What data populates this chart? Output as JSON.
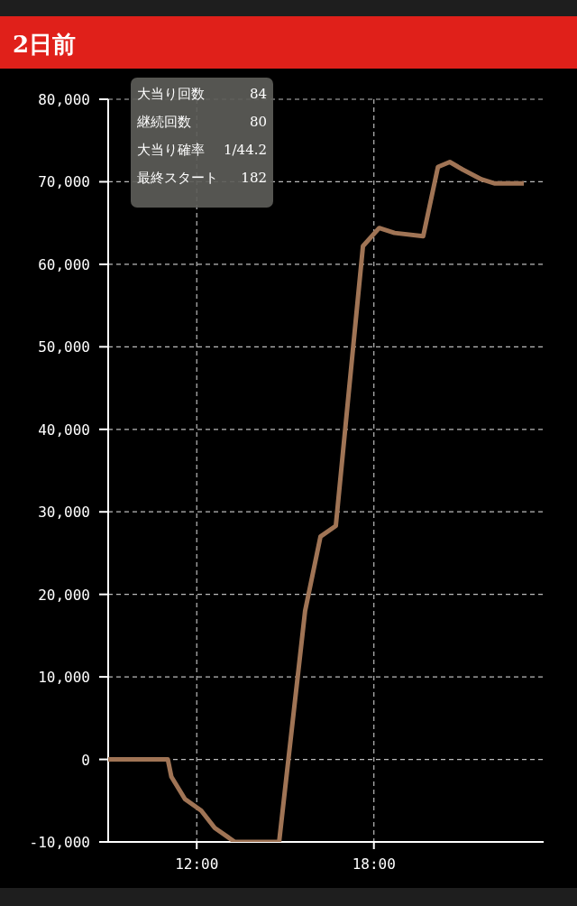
{
  "chart_data": {
    "type": "line",
    "title": "2日前",
    "annotations": [
      "大当り回数",
      "84",
      "継続回数",
      "80",
      "大当り確率",
      "1/44.2",
      "最終スタート",
      "182"
    ],
    "x": [
      9.0,
      11.02,
      11.14,
      11.6,
      12.15,
      12.61,
      13.29,
      14.79,
      15.67,
      16.19,
      16.71,
      17.63,
      18.18,
      18.7,
      19.67,
      20.17,
      20.57,
      21.0,
      21.64,
      22.1,
      23.08
    ],
    "series": [
      {
        "color": "#a07455",
        "values": [
          0,
          0,
          -2100,
          -4800,
          -6200,
          -8300,
          -10000,
          -10000,
          18000,
          27000,
          28300,
          62200,
          64400,
          63800,
          63400,
          71800,
          72400,
          71500,
          70300,
          69800,
          69800
        ]
      }
    ],
    "xlim": [
      9,
      23.75
    ],
    "xticks": [
      {
        "value": 12,
        "label": "12:00"
      },
      {
        "value": 18,
        "label": "18:00"
      }
    ],
    "ylim": [
      -10000,
      80000
    ],
    "yticks": [
      {
        "value": -10000,
        "label": "-10,000"
      },
      0,
      {
        "value": 10000,
        "label": "10,000"
      },
      {
        "value": 20000,
        "label": "20,000"
      },
      {
        "value": 30000,
        "label": "30,000"
      },
      {
        "value": 40000,
        "label": "40,000"
      },
      {
        "value": 50000,
        "label": "50,000"
      },
      {
        "value": 60000,
        "label": "60,000"
      },
      {
        "value": 70000,
        "label": "70,000"
      },
      {
        "value": 80000,
        "label": "80,000"
      }
    ],
    "grid": true,
    "marker": "none",
    "line_style": "solid"
  }
}
